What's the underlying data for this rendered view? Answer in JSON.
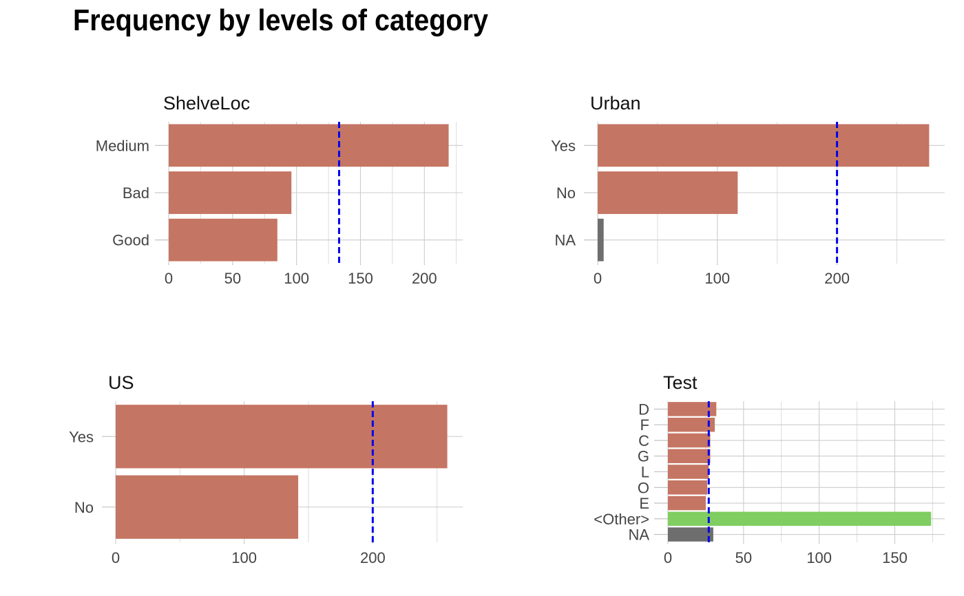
{
  "title": "Frequency by levels of category",
  "colors": {
    "bar": "#c57563",
    "missing": "#6e6e6e",
    "other": "#80cd62",
    "mean_line": "#0000ee"
  },
  "chart_data": [
    {
      "type": "bar",
      "orientation": "horizontal",
      "title": "ShelveLoc",
      "categories": [
        "Medium",
        "Bad",
        "Good"
      ],
      "values": [
        219,
        96,
        85
      ],
      "bar_kinds": [
        "level",
        "level",
        "level"
      ],
      "xlim": [
        0,
        230
      ],
      "x_ticks": [
        0,
        50,
        100,
        150,
        200
      ],
      "x_tick_labels": [
        "0",
        "50",
        "100",
        "150",
        "200"
      ],
      "mean_line": 133.3,
      "xlabel": "",
      "ylabel": ""
    },
    {
      "type": "bar",
      "orientation": "horizontal",
      "title": "Urban",
      "categories": [
        "Yes",
        "No",
        "NA"
      ],
      "values": [
        277,
        117,
        5
      ],
      "bar_kinds": [
        "level",
        "level",
        "missing"
      ],
      "xlim": [
        0,
        290
      ],
      "x_ticks": [
        0,
        100,
        200
      ],
      "x_tick_labels": [
        "0",
        "100",
        "200"
      ],
      "mean_line": 200,
      "xlabel": "",
      "ylabel": ""
    },
    {
      "type": "bar",
      "orientation": "horizontal",
      "title": "US",
      "categories": [
        "Yes",
        "No"
      ],
      "values": [
        258,
        142
      ],
      "bar_kinds": [
        "level",
        "level"
      ],
      "xlim": [
        0,
        270
      ],
      "x_ticks": [
        0,
        100,
        200
      ],
      "x_tick_labels": [
        "0",
        "100",
        "200"
      ],
      "mean_line": 200,
      "xlabel": "",
      "ylabel": ""
    },
    {
      "type": "bar",
      "orientation": "horizontal",
      "title": "Test",
      "categories": [
        "D",
        "F",
        "C",
        "G",
        "L",
        "O",
        "E",
        "<Other>",
        "NA"
      ],
      "values": [
        32,
        31,
        28,
        28,
        27,
        26,
        25,
        174,
        30
      ],
      "bar_kinds": [
        "level",
        "level",
        "level",
        "level",
        "level",
        "level",
        "level",
        "other",
        "missing"
      ],
      "xlim": [
        0,
        183
      ],
      "x_ticks": [
        0,
        50,
        100,
        150
      ],
      "x_tick_labels": [
        "0",
        "50",
        "100",
        "150"
      ],
      "mean_line": 27,
      "xlabel": "",
      "ylabel": ""
    }
  ]
}
